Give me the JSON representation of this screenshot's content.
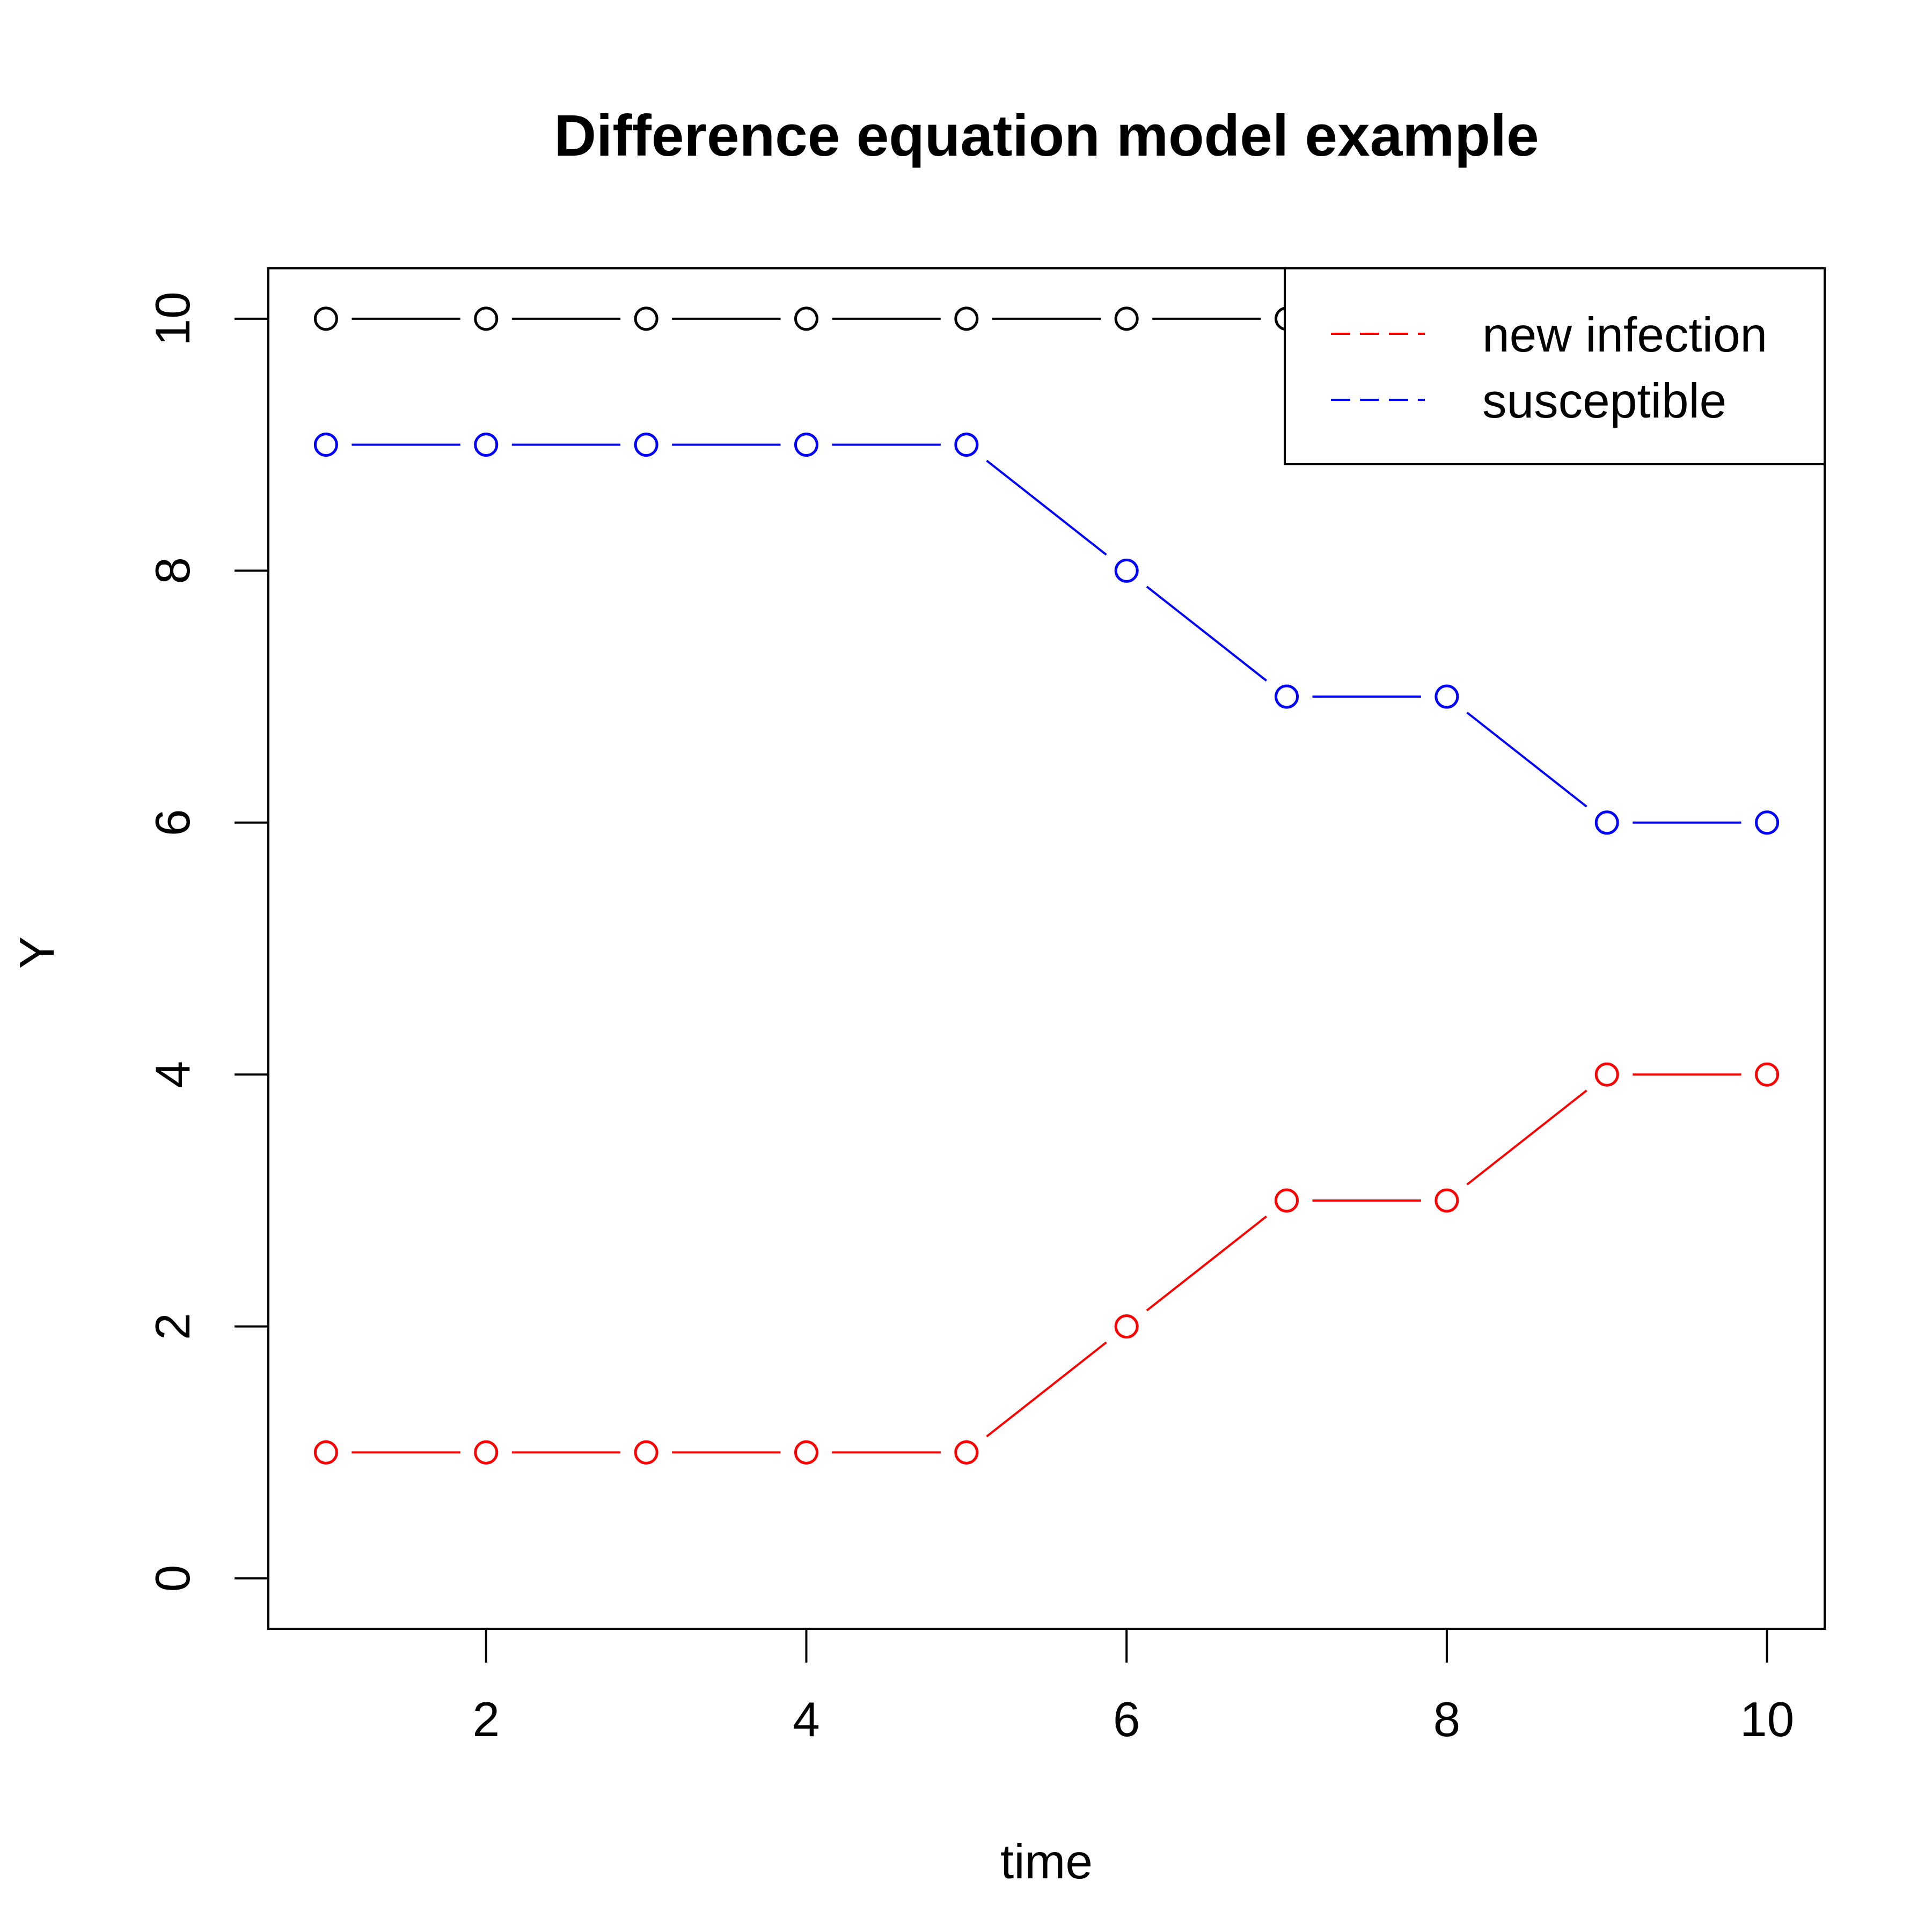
{
  "chart_data": {
    "type": "line",
    "title": "Difference equation model example",
    "xlabel": "time",
    "ylabel": "Y",
    "x": [
      1,
      2,
      3,
      4,
      5,
      6,
      7,
      8,
      9,
      10
    ],
    "xlim": [
      0.64,
      10.36
    ],
    "ylim": [
      -0.4,
      10.4
    ],
    "xticks": [
      2,
      4,
      6,
      8,
      10
    ],
    "yticks": [
      0,
      2,
      4,
      6,
      8,
      10
    ],
    "grid": false,
    "legend_position": "top-right",
    "series": [
      {
        "key": "total",
        "color": "#000000",
        "values": [
          10,
          10,
          10,
          10,
          10,
          10,
          10,
          10,
          10,
          10
        ]
      },
      {
        "name": "susceptible",
        "color": "#0000ff",
        "values": [
          9,
          9,
          9,
          9,
          9,
          8,
          7,
          7,
          6,
          6
        ]
      },
      {
        "name": "new infection",
        "color": "#ff0000",
        "values": [
          1,
          1,
          1,
          1,
          1,
          2,
          3,
          3,
          4,
          4
        ]
      }
    ],
    "legend": [
      {
        "label": "new infection",
        "color": "#ff0000"
      },
      {
        "label": "susceptible",
        "color": "#0000ff"
      }
    ]
  }
}
